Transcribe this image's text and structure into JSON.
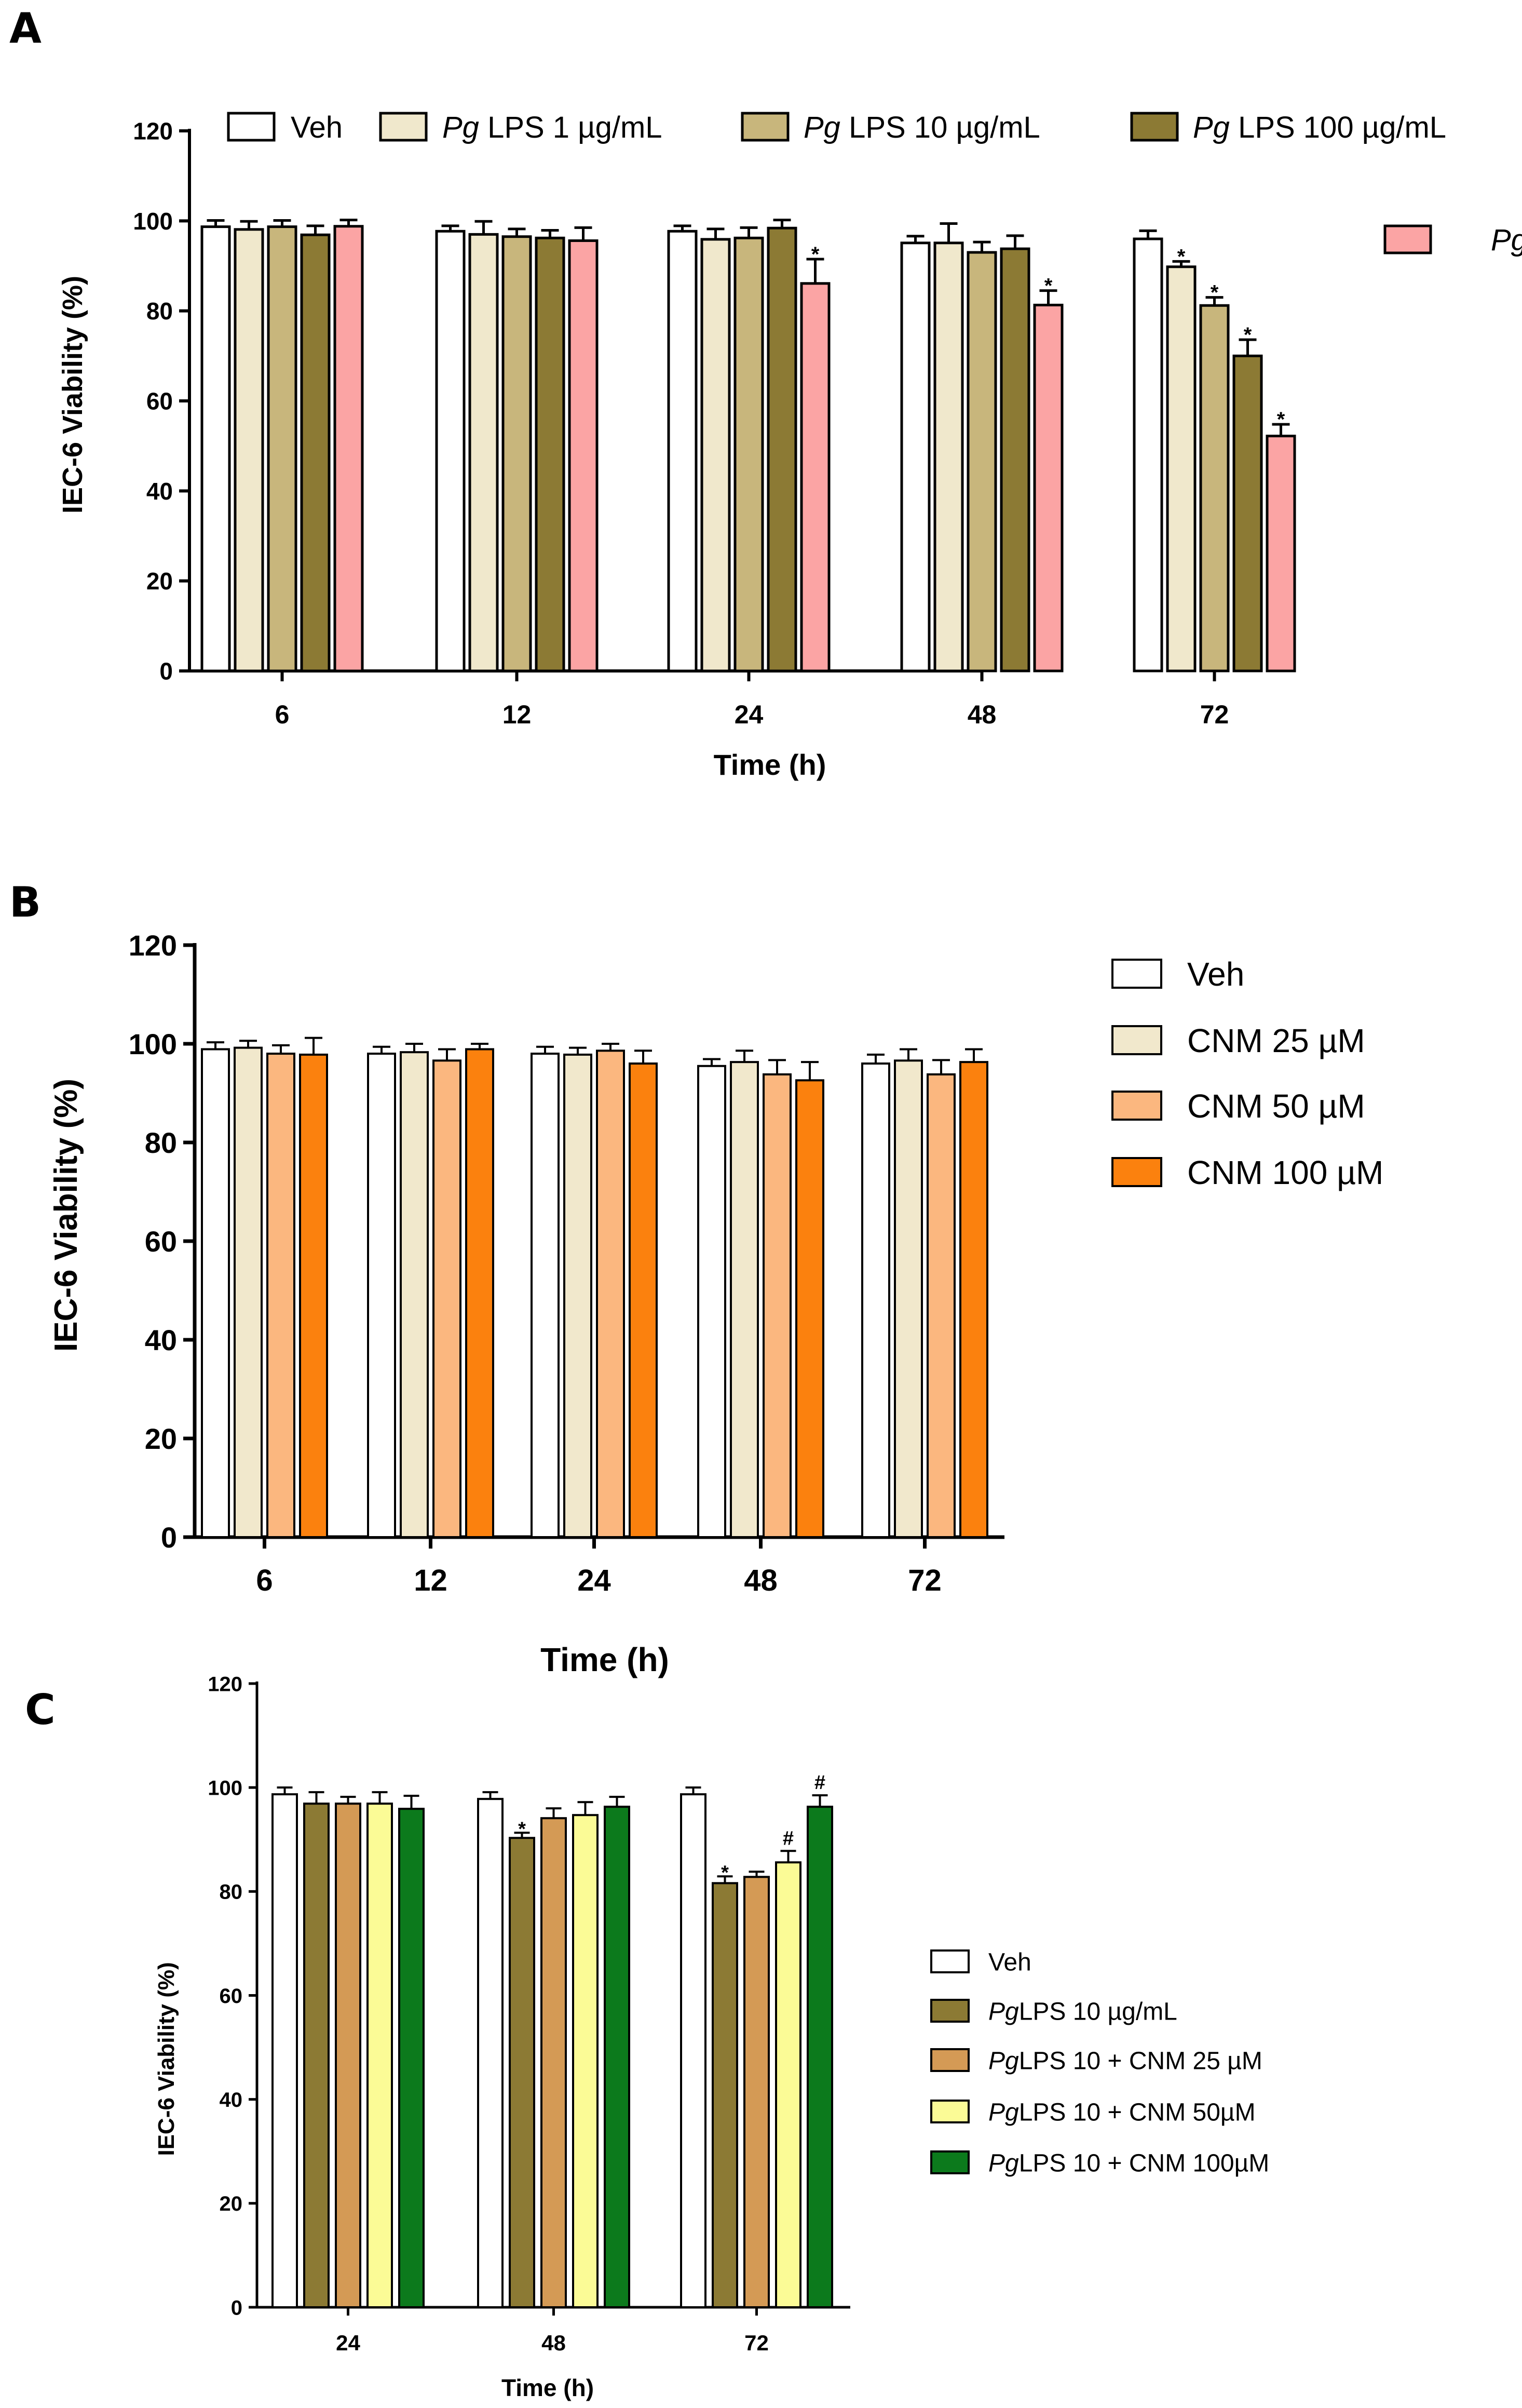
{
  "chart_data": [
    {
      "type": "bar",
      "panel_label": "A",
      "xlabel": "Time (h)",
      "ylabel": "IEC-6 Viability (%)",
      "ylim": [
        0,
        120
      ],
      "yticks": [
        "0",
        "20",
        "40",
        "60",
        "80",
        "100",
        "120"
      ],
      "categories": [
        "6",
        "12",
        "24",
        "48",
        "72"
      ],
      "legend_position": "top",
      "series": [
        {
          "name": "Veh",
          "italic": "",
          "rest": "Veh",
          "color": "#ffffff",
          "values": [
            98.7,
            97.7,
            97.7,
            95.1,
            96.0
          ],
          "errors": [
            1.4,
            1.2,
            1.2,
            1.5,
            1.8
          ],
          "markers": [
            "",
            "",
            "",
            "",
            ""
          ]
        },
        {
          "name": "Pg LPS 1 µg/mL",
          "italic": "Pg",
          "rest": " LPS 1 µg/mL",
          "color": "#f0e8cc",
          "values": [
            98.1,
            97.0,
            95.9,
            95.1,
            89.8
          ],
          "errors": [
            1.8,
            2.9,
            2.3,
            4.3,
            1.2
          ],
          "markers": [
            "",
            "",
            "",
            "",
            "*"
          ]
        },
        {
          "name": "Pg LPS 10 µg/mL",
          "italic": "Pg",
          "rest": " LPS 10 µg/mL",
          "color": "#c8b67c",
          "values": [
            98.7,
            96.5,
            96.2,
            93.0,
            81.2
          ],
          "errors": [
            1.4,
            1.7,
            2.3,
            2.3,
            1.8
          ],
          "markers": [
            "",
            "",
            "",
            "",
            "*"
          ]
        },
        {
          "name": "Pg LPS 100 µg/mL",
          "italic": "Pg",
          "rest": " LPS 100 µg/mL",
          "color": "#8c7a34",
          "values": [
            96.9,
            96.2,
            98.4,
            93.8,
            70.0
          ],
          "errors": [
            2.0,
            1.7,
            1.8,
            2.9,
            3.6
          ],
          "markers": [
            "",
            "",
            "",
            "",
            "*"
          ]
        },
        {
          "name": "Pg",
          "italic": "Pg",
          "rest": "",
          "color": "#fba4a4",
          "values": [
            98.8,
            95.6,
            86.1,
            81.3,
            52.2
          ],
          "errors": [
            1.4,
            2.9,
            5.4,
            3.2,
            2.6
          ],
          "markers": [
            "",
            "",
            "*",
            "*",
            "*"
          ]
        }
      ]
    },
    {
      "type": "bar",
      "panel_label": "B",
      "xlabel": "Time (h)",
      "ylabel": "IEC-6 Viability (%)",
      "ylim": [
        0,
        120
      ],
      "yticks": [
        "0",
        "20",
        "40",
        "60",
        "80",
        "100",
        "120"
      ],
      "categories": [
        "6",
        "12",
        "24",
        "48",
        "72"
      ],
      "legend_position": "right",
      "series": [
        {
          "name": "Veh",
          "italic": "",
          "rest": "Veh",
          "color": "#ffffff",
          "values": [
            98.9,
            98.0,
            98.0,
            95.5,
            96.0
          ],
          "errors": [
            1.4,
            1.4,
            1.4,
            1.4,
            1.8
          ],
          "markers": [
            "",
            "",
            "",
            "",
            ""
          ]
        },
        {
          "name": "CNM 25 µM",
          "italic": "",
          "rest": "CNM 25 µM",
          "color": "#f1e8cc",
          "values": [
            99.2,
            98.3,
            97.8,
            96.3,
            96.6
          ],
          "errors": [
            1.4,
            1.7,
            1.4,
            2.3,
            2.3
          ],
          "markers": [
            "",
            "",
            "",
            "",
            ""
          ]
        },
        {
          "name": "CNM 50 µM",
          "italic": "",
          "rest": "CNM 50 µM",
          "color": "#fbb77f",
          "values": [
            98.0,
            96.6,
            98.6,
            93.8,
            93.8
          ],
          "errors": [
            1.7,
            2.3,
            1.4,
            2.9,
            2.9
          ],
          "markers": [
            "",
            "",
            "",
            "",
            ""
          ]
        },
        {
          "name": "CNM 100 µM",
          "italic": "",
          "rest": "CNM 100 µM",
          "color": "#fb810e",
          "values": [
            97.8,
            98.9,
            96.0,
            92.6,
            96.3
          ],
          "errors": [
            3.4,
            1.1,
            2.6,
            3.7,
            2.6
          ],
          "markers": [
            "",
            "",
            "",
            "",
            ""
          ]
        }
      ]
    },
    {
      "type": "bar",
      "panel_label": "C",
      "xlabel": "Time (h)",
      "ylabel": "IEC-6 Viability (%)",
      "ylim": [
        0,
        120
      ],
      "yticks": [
        "0",
        "20",
        "40",
        "60",
        "80",
        "100",
        "120"
      ],
      "categories": [
        "24",
        "48",
        "72"
      ],
      "legend_position": "right",
      "series": [
        {
          "name": "Veh",
          "italic": "",
          "rest": "Veh",
          "color": "#ffffff",
          "values": [
            98.7,
            97.8,
            98.7
          ],
          "errors": [
            1.3,
            1.3,
            1.3
          ],
          "markers": [
            "",
            "",
            ""
          ]
        },
        {
          "name": "PgLPS 10 µg/mL",
          "italic": "Pg",
          "rest": "LPS 10 µg/mL",
          "color": "#8c7a34",
          "values": [
            96.9,
            90.3,
            81.6
          ],
          "errors": [
            2.2,
            1.0,
            1.3
          ],
          "markers": [
            "",
            "*",
            "*"
          ]
        },
        {
          "name": "PgLPS 10 + CNM 25 µM",
          "italic": "Pg",
          "rest": "LPS 10 + CNM 25 µM",
          "color": "#d49a55",
          "values": [
            96.9,
            94.1,
            82.8
          ],
          "errors": [
            1.3,
            1.9,
            1.0
          ],
          "markers": [
            "",
            "",
            ""
          ]
        },
        {
          "name": "PgLPS 10 + CNM 50µM",
          "italic": "Pg",
          "rest": "LPS 10 + CNM 50µM",
          "color": "#fbfb96",
          "values": [
            96.9,
            94.7,
            85.6
          ],
          "errors": [
            2.2,
            2.5,
            2.2
          ],
          "markers": [
            "",
            "",
            "#"
          ]
        },
        {
          "name": "PgLPS 10 + CNM 100µM",
          "italic": "Pg",
          "rest": "LPS 10 + CNM 100µM",
          "color": "#0c7a1c",
          "values": [
            95.9,
            96.3,
            96.3
          ],
          "errors": [
            2.5,
            1.9,
            2.2
          ],
          "markers": [
            "",
            "",
            "#"
          ]
        }
      ]
    }
  ]
}
